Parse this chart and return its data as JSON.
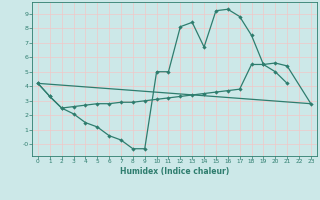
{
  "xlabel": "Humidex (Indice chaleur)",
  "background_color": "#cce8e8",
  "grid_color": "#f0c8c8",
  "line_color": "#2e7d6e",
  "xlim": [
    -0.5,
    23.5
  ],
  "ylim": [
    -0.8,
    9.8
  ],
  "xticks": [
    0,
    1,
    2,
    3,
    4,
    5,
    6,
    7,
    8,
    9,
    10,
    11,
    12,
    13,
    14,
    15,
    16,
    17,
    18,
    19,
    20,
    21,
    22,
    23
  ],
  "ytick_vals": [
    0,
    1,
    2,
    3,
    4,
    5,
    6,
    7,
    8,
    9
  ],
  "ytick_labels": [
    "-0",
    "1",
    "2",
    "3",
    "4",
    "5",
    "6",
    "7",
    "8",
    "9"
  ],
  "line1_x": [
    0,
    1,
    2,
    3,
    4,
    5,
    6,
    7,
    8,
    9,
    10,
    11,
    12,
    13,
    14,
    15,
    16,
    17,
    18,
    19,
    20,
    21
  ],
  "line1_y": [
    4.2,
    3.3,
    2.5,
    2.1,
    1.5,
    1.2,
    0.6,
    0.3,
    -0.3,
    -0.3,
    5.0,
    5.0,
    8.1,
    8.4,
    6.7,
    9.2,
    9.3,
    8.8,
    7.5,
    5.5,
    5.0,
    4.2
  ],
  "line2_x": [
    0,
    1,
    2,
    3,
    4,
    5,
    6,
    7,
    8,
    9,
    10,
    11,
    12,
    13,
    14,
    15,
    16,
    17,
    18,
    19,
    20,
    21,
    23
  ],
  "line2_y": [
    4.2,
    3.3,
    2.5,
    2.6,
    2.7,
    2.8,
    2.8,
    2.9,
    2.9,
    3.0,
    3.1,
    3.2,
    3.3,
    3.4,
    3.5,
    3.6,
    3.7,
    3.8,
    5.5,
    5.5,
    5.6,
    5.4,
    2.8
  ],
  "line3_x": [
    0,
    23
  ],
  "line3_y": [
    4.2,
    2.8
  ]
}
